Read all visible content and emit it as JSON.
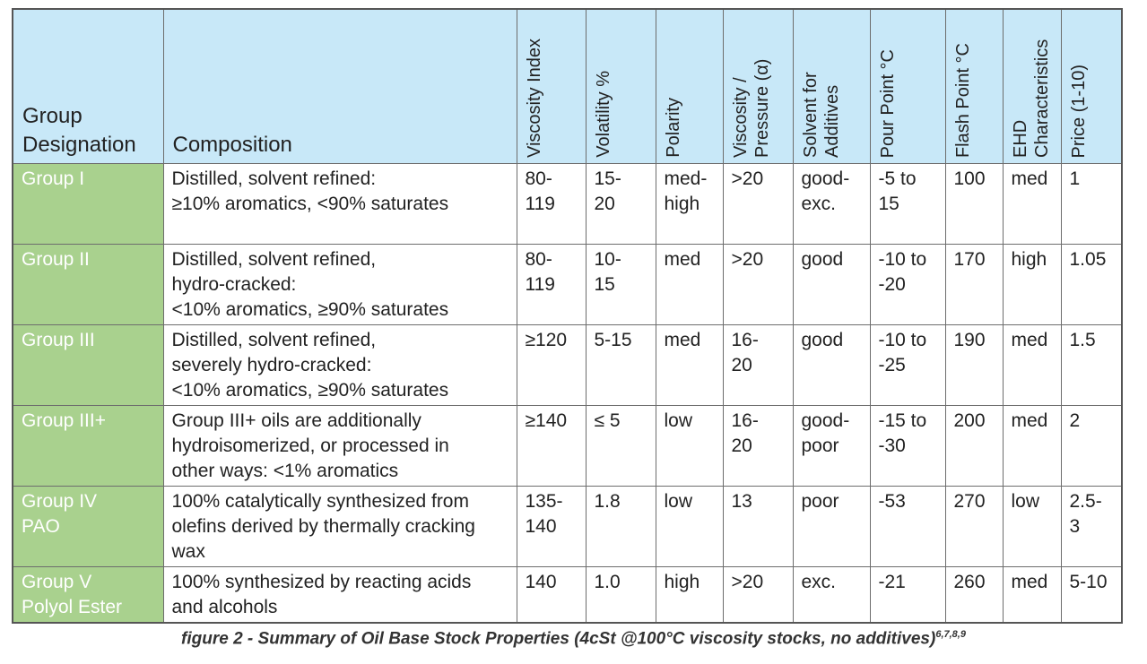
{
  "headers": {
    "group": [
      "Group",
      "Designation"
    ],
    "composition": "Composition",
    "vi": "Viscosity Index",
    "volatility": "Volatility %",
    "polarity": "Polarity",
    "vp": "Viscosity / Pressure (α)",
    "solvent": "Solvent for Additives",
    "pour": "Pour Point °C",
    "flash": "Flash Point °C",
    "ehd": "EHD Characteristics",
    "price": "Price (1-10)"
  },
  "rows": [
    {
      "group": [
        "Group I"
      ],
      "composition": [
        "Distilled, solvent refined:",
        "≥10% aromatics, <90% saturates"
      ],
      "vi": [
        "80-",
        "119"
      ],
      "vol": [
        "15-",
        "20"
      ],
      "pol": [
        "med-",
        "high"
      ],
      "vp": [
        ">20"
      ],
      "solv": [
        "good-",
        "exc."
      ],
      "pour": [
        "-5 to",
        "15"
      ],
      "flash": "100",
      "ehd": "med",
      "price": [
        "1"
      ]
    },
    {
      "group": [
        "Group II"
      ],
      "composition": [
        "Distilled, solvent refined,",
        "hydro-cracked:",
        "<10% aromatics, ≥90% saturates"
      ],
      "vi": [
        "80-",
        "119"
      ],
      "vol": [
        "10-",
        "15"
      ],
      "pol": [
        "med"
      ],
      "vp": [
        ">20"
      ],
      "solv": [
        "good"
      ],
      "pour": [
        "-10 to",
        "-20"
      ],
      "flash": "170",
      "ehd": "high",
      "price": [
        "1.05"
      ]
    },
    {
      "group": [
        "Group III"
      ],
      "composition": [
        "Distilled, solvent refined,",
        "severely hydro-cracked:",
        "<10% aromatics, ≥90% saturates"
      ],
      "vi": [
        "≥120"
      ],
      "vol": [
        "5-15"
      ],
      "pol": [
        "med"
      ],
      "vp": [
        "16-",
        "20"
      ],
      "solv": [
        "good"
      ],
      "pour": [
        "-10 to",
        "-25"
      ],
      "flash": "190",
      "ehd": "med",
      "price": [
        "1.5"
      ]
    },
    {
      "group": [
        "Group III+"
      ],
      "composition": [
        "Group III+ oils are additionally",
        "hydroisomerized, or processed in",
        "other ways: <1% aromatics"
      ],
      "vi": [
        "≥140"
      ],
      "vol": [
        "≤ 5"
      ],
      "pol": [
        "low"
      ],
      "vp": [
        "16-",
        "20"
      ],
      "solv": [
        "good-",
        "poor"
      ],
      "pour": [
        "-15 to",
        "-30"
      ],
      "flash": "200",
      "ehd": "med",
      "price": [
        "2"
      ]
    },
    {
      "group": [
        "Group IV",
        "PAO"
      ],
      "composition": [
        "100% catalytically synthesized from",
        "olefins derived by thermally cracking",
        "wax"
      ],
      "vi": [
        "135-",
        "140"
      ],
      "vol": [
        "1.8"
      ],
      "pol": [
        "low"
      ],
      "vp": [
        "13"
      ],
      "solv": [
        "poor"
      ],
      "pour": [
        "-53"
      ],
      "flash": "270",
      "ehd": "low",
      "price": [
        "2.5-",
        "3"
      ]
    },
    {
      "group": [
        "Group V",
        "Polyol Ester"
      ],
      "composition": [
        "100% synthesized by reacting acids",
        "and alcohols"
      ],
      "vi": [
        "140"
      ],
      "vol": [
        "1.0"
      ],
      "pol": [
        "high"
      ],
      "vp": [
        ">20"
      ],
      "solv": [
        "exc."
      ],
      "pour": [
        "-21"
      ],
      "flash": "260",
      "ehd": "med",
      "price": [
        "5-10"
      ]
    }
  ],
  "caption": {
    "text": "figure 2 - Summary of Oil Base Stock Properties (4cSt @100°C viscosity stocks, no additives)",
    "refs": "6,7,8,9"
  },
  "colors": {
    "header_bg": "#c8e8f8",
    "group_bg": "#a9d18e",
    "group_text": "#ffffff"
  }
}
